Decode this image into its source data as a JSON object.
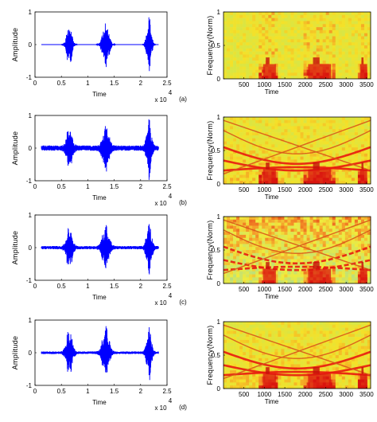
{
  "chart_data": [
    {
      "type": "line",
      "panel": "(a)",
      "ylabel": "Amplitude",
      "xlabel": "Time",
      "xlim": [
        0,
        25000
      ],
      "ylim": [
        -1,
        1
      ],
      "xticks": [
        "0",
        "0.5",
        "1",
        "1.5",
        "2",
        "2.5"
      ],
      "xexp": "x 10",
      "xexp_power": "4",
      "yticks": [
        "1",
        "0",
        "-1"
      ],
      "bursts": [
        {
          "center": 6500,
          "width": 1700,
          "amp": 0.7
        },
        {
          "center": 13400,
          "width": 2000,
          "amp": 0.8
        },
        {
          "center": 21600,
          "width": 1400,
          "amp": 0.9
        }
      ],
      "noise": 0.0,
      "color": "#0000ff"
    },
    {
      "type": "heatmap",
      "ylabel": "Frequency(Norm)",
      "xlabel": "Time",
      "xlim": [
        0,
        3600
      ],
      "ylim": [
        0,
        1
      ],
      "xticks": [
        "500",
        "1000",
        "1500",
        "2000",
        "2500",
        "3000",
        "3500"
      ],
      "yticks": [
        "1",
        "0.5",
        "0"
      ],
      "style": "speech-only",
      "bursts": [
        {
          "start": 900,
          "end": 1350
        },
        {
          "start": 1950,
          "end": 2750
        },
        {
          "start": 3300,
          "end": 3550
        }
      ]
    },
    {
      "type": "line",
      "panel": "(b)",
      "ylabel": "Amplitude",
      "xlabel": "Time",
      "xlim": [
        0,
        25000
      ],
      "ylim": [
        -1,
        1
      ],
      "xticks": [
        "0",
        "0.5",
        "1",
        "1.5",
        "2",
        "2.5"
      ],
      "xexp": "x 10",
      "xexp_power": "4",
      "yticks": [
        "1",
        "0",
        "-1"
      ],
      "bursts": [
        {
          "center": 6500,
          "width": 1800,
          "amp": 0.6
        },
        {
          "center": 13400,
          "width": 2000,
          "amp": 0.7
        },
        {
          "center": 21600,
          "width": 1400,
          "amp": 0.9
        }
      ],
      "noise": 0.08,
      "color": "#0000ff"
    },
    {
      "type": "heatmap",
      "ylabel": "Frequency(Norm)",
      "xlabel": "Time",
      "xlim": [
        0,
        3600
      ],
      "ylim": [
        0,
        1
      ],
      "xticks": [
        "500",
        "1000",
        "1500",
        "2000",
        "2500",
        "3000",
        "3500"
      ],
      "yticks": [
        "1",
        "0.5",
        "0"
      ],
      "style": "chirps",
      "bursts": [
        {
          "start": 900,
          "end": 1350
        },
        {
          "start": 1950,
          "end": 2750
        },
        {
          "start": 3300,
          "end": 3550
        }
      ]
    },
    {
      "type": "line",
      "panel": "(c)",
      "ylabel": "Amplitude",
      "xlabel": "Time",
      "xlim": [
        0,
        25000
      ],
      "ylim": [
        -1,
        1
      ],
      "xticks": [
        "0",
        "0.5",
        "1",
        "1.5",
        "2",
        "2.5"
      ],
      "xexp": "x 10",
      "xexp_power": "4",
      "yticks": [
        "1",
        "0",
        "-1"
      ],
      "bursts": [
        {
          "center": 6500,
          "width": 1800,
          "amp": 0.65
        },
        {
          "center": 13400,
          "width": 2100,
          "amp": 0.7
        },
        {
          "center": 21600,
          "width": 1500,
          "amp": 0.85
        }
      ],
      "noise": 0.05,
      "color": "#0000ff"
    },
    {
      "type": "heatmap",
      "ylabel": "Frequency(Norm)",
      "xlabel": "Time",
      "xlim": [
        0,
        3600
      ],
      "ylim": [
        0,
        1
      ],
      "xticks": [
        "500",
        "1000",
        "1500",
        "2000",
        "2500",
        "3000",
        "3500"
      ],
      "yticks": [
        "1",
        "0.5",
        "0"
      ],
      "style": "chirps-green",
      "bursts": [
        {
          "start": 900,
          "end": 1350
        },
        {
          "start": 1950,
          "end": 2750
        },
        {
          "start": 3300,
          "end": 3550
        }
      ]
    },
    {
      "type": "line",
      "panel": "(d)",
      "ylabel": "Amplitude",
      "xlabel": "Time",
      "xlim": [
        0,
        25000
      ],
      "ylim": [
        -1,
        1
      ],
      "xticks": [
        "0",
        "0.5",
        "1",
        "1.5",
        "2",
        "2.5"
      ],
      "xexp": "x 10",
      "xexp_power": "4",
      "yticks": [
        "1",
        "0",
        "-1"
      ],
      "bursts": [
        {
          "center": 6500,
          "width": 1800,
          "amp": 0.75
        },
        {
          "center": 13400,
          "width": 2000,
          "amp": 0.8
        },
        {
          "center": 21600,
          "width": 1400,
          "amp": 0.9
        }
      ],
      "noise": 0.04,
      "color": "#0000ff"
    },
    {
      "type": "heatmap",
      "ylabel": "Frequency(Norm)",
      "xlabel": "Time",
      "xlim": [
        0,
        3600
      ],
      "ylim": [
        0,
        1
      ],
      "xticks": [
        "500",
        "1000",
        "1500",
        "2000",
        "2500",
        "3000",
        "3500"
      ],
      "yticks": [
        "1",
        "0.5",
        "0"
      ],
      "style": "chirps",
      "bursts": [
        {
          "center": 0,
          "start": 900,
          "end": 1350
        },
        {
          "start": 1950,
          "end": 2750
        },
        {
          "start": 3300,
          "end": 3550
        }
      ]
    }
  ]
}
